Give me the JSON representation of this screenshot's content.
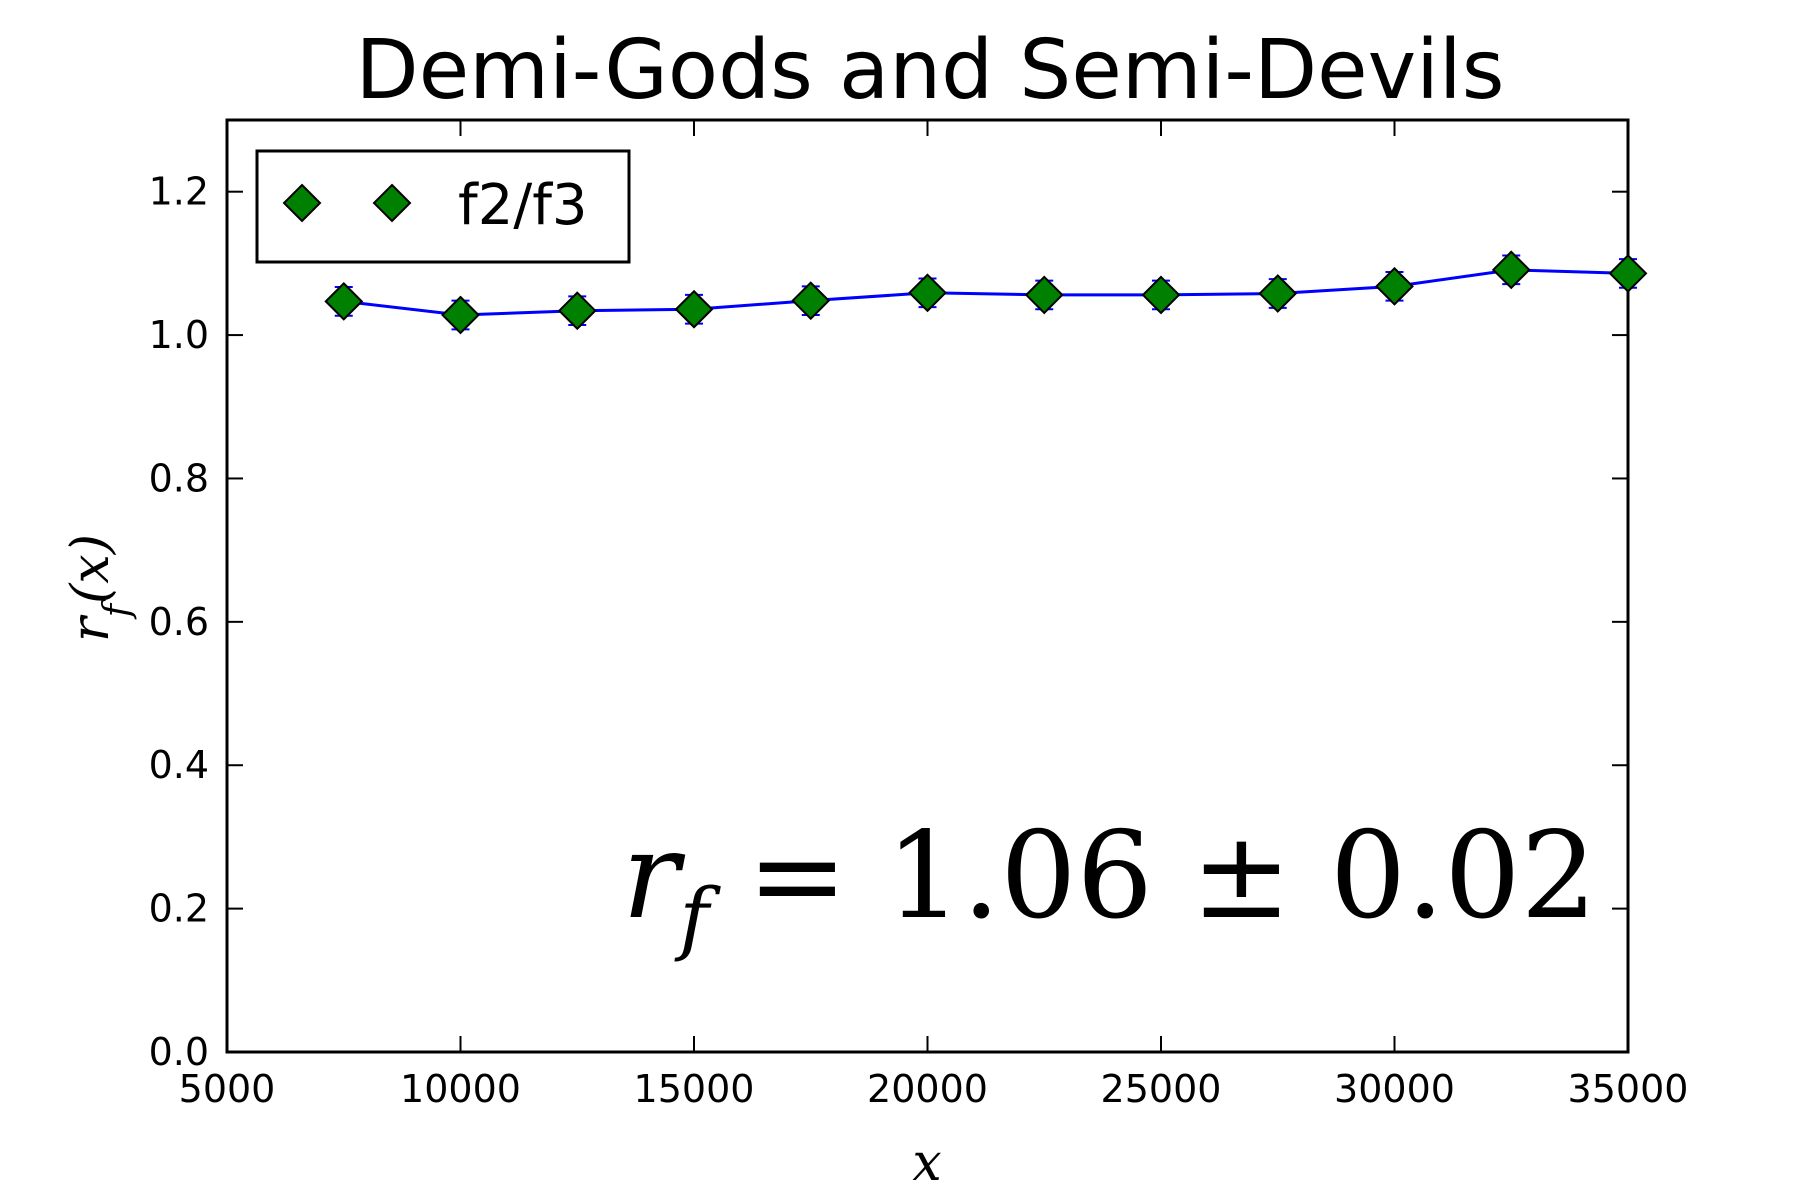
{
  "chart_data": {
    "type": "line",
    "title": "Demi-Gods and Semi-Devils",
    "xlabel": "x",
    "ylabel": "r_f(x)",
    "xlim": [
      5000,
      35000
    ],
    "ylim": [
      0.0,
      1.3
    ],
    "xticks": [
      "5000",
      "10000",
      "15000",
      "20000",
      "25000",
      "30000",
      "35000"
    ],
    "yticks": [
      "0.0",
      "0.2",
      "0.4",
      "0.6",
      "0.8",
      "1.0",
      "1.2"
    ],
    "grid": false,
    "legend_position": "top-left",
    "annotation": {
      "symbol": "r",
      "subscript": "f",
      "equals": "=",
      "value": "1.06",
      "pm": "±",
      "error": "0.02"
    },
    "series": [
      {
        "name": "f2/f3",
        "line_color": "#0000ff",
        "marker_color": "#008000",
        "marker": "diamond",
        "x": [
          7500,
          10000,
          12500,
          15000,
          17500,
          20000,
          22500,
          25000,
          27500,
          30000,
          32500,
          35000
        ],
        "y": [
          1.047,
          1.028,
          1.034,
          1.036,
          1.048,
          1.059,
          1.056,
          1.056,
          1.058,
          1.068,
          1.091,
          1.086
        ],
        "yerr": [
          0.02,
          0.02,
          0.02,
          0.02,
          0.02,
          0.02,
          0.02,
          0.02,
          0.02,
          0.02,
          0.02,
          0.02
        ]
      }
    ]
  }
}
